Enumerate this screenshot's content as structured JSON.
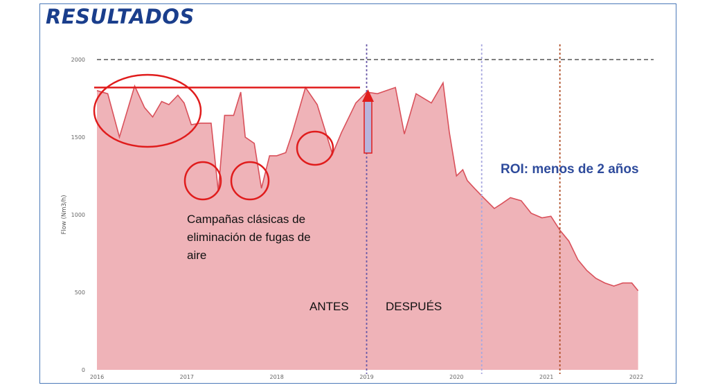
{
  "page_title": "RESULTADOS",
  "colors": {
    "area_fill": "#efb3b8",
    "area_line": "#d9505a",
    "annotation_red": "#e01c1c",
    "frame_blue": "#4a78b8",
    "title_blue": "#1a3e8c",
    "roi_blue": "#2e4b9c",
    "marker_2019": "#6a5aa8",
    "marker_2020": "#a8a8e0",
    "marker_2021": "#b0502a"
  },
  "chart_data": {
    "type": "area",
    "title": "",
    "xlabel": "",
    "ylabel": "Flow (Nm3/h)",
    "xlim": [
      2016,
      2022.1
    ],
    "ylim": [
      0,
      2000
    ],
    "yticks": [
      0,
      500,
      1000,
      1500,
      2000
    ],
    "xtick_labels": [
      "2016",
      "2017",
      "2018",
      "2019",
      "2020",
      "2021",
      "2022"
    ],
    "grid": false,
    "reference_line": {
      "y": 2000,
      "style": "dashed"
    },
    "x": [
      2016.0,
      2016.12,
      2016.25,
      2016.42,
      2016.53,
      2016.62,
      2016.72,
      2016.8,
      2016.9,
      2016.97,
      2017.05,
      2017.15,
      2017.27,
      2017.35,
      2017.42,
      2017.52,
      2017.6,
      2017.65,
      2017.75,
      2017.83,
      2017.92,
      2018.0,
      2018.1,
      2018.17,
      2018.32,
      2018.45,
      2018.62,
      2018.72,
      2018.88,
      2019.0,
      2019.12,
      2019.22,
      2019.32,
      2019.42,
      2019.55,
      2019.72,
      2019.85,
      2019.92,
      2020.0,
      2020.07,
      2020.12,
      2020.2,
      2020.3,
      2020.42,
      2020.5,
      2020.6,
      2020.72,
      2020.83,
      2020.95,
      2021.05,
      2021.15,
      2021.25,
      2021.35,
      2021.45,
      2021.55,
      2021.65,
      2021.75,
      2021.85,
      2021.95,
      2022.02
    ],
    "y": [
      1800,
      1780,
      1500,
      1830,
      1690,
      1630,
      1730,
      1710,
      1770,
      1720,
      1580,
      1590,
      1590,
      1150,
      1640,
      1640,
      1790,
      1500,
      1460,
      1170,
      1380,
      1380,
      1400,
      1520,
      1820,
      1710,
      1390,
      1530,
      1720,
      1790,
      1780,
      1800,
      1820,
      1520,
      1780,
      1720,
      1850,
      1530,
      1250,
      1290,
      1220,
      1170,
      1110,
      1040,
      1070,
      1110,
      1090,
      1010,
      980,
      990,
      900,
      830,
      710,
      640,
      590,
      560,
      540,
      560,
      560,
      510
    ],
    "vertical_markers": [
      {
        "x": 2019.0,
        "style": "dotted"
      },
      {
        "x": 2020.28,
        "style": "dotted"
      },
      {
        "x": 2021.15,
        "style": "dotted"
      }
    ],
    "annotations": {
      "note_lines": [
        "Campañas clásicas de",
        "eliminación de fugas de",
        "aire"
      ],
      "antes": "ANTES",
      "despues": "DESPUÉS",
      "roi": "ROI: menos de 2 años",
      "baseline_y": 1820
    }
  }
}
